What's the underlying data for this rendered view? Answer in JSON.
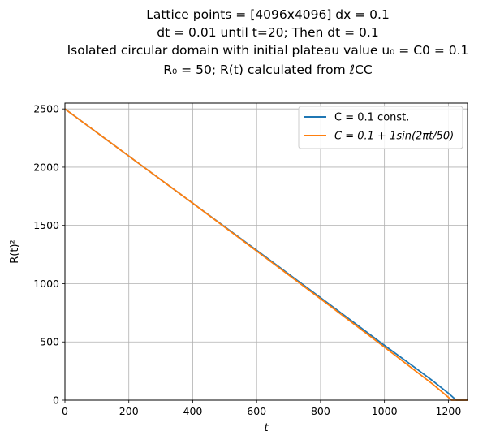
{
  "chart_data": {
    "type": "line",
    "title_lines": [
      "Lattice points = [4096x4096] dx = 0.1",
      "dt = 0.01 until t=20; Then dt = 0.1",
      "Isolated circular domain with initial plateau value u₀ = C0 = 0.1",
      "R₀ = 50; R(t) calculated from ℓCC"
    ],
    "xlabel": "t",
    "ylabel": "R(t)²",
    "xlim": [
      0,
      1260
    ],
    "ylim": [
      0,
      2550
    ],
    "xticks": [
      0,
      200,
      400,
      600,
      800,
      1000,
      1200
    ],
    "yticks": [
      0,
      500,
      1000,
      1500,
      2000,
      2500
    ],
    "grid": true,
    "legend_position": "upper-right",
    "series": [
      {
        "name": "C = 0.1 const.",
        "color": "#1f77b4",
        "x": [
          0,
          200,
          400,
          600,
          800,
          1000,
          1100,
          1150,
          1200,
          1225,
          1260
        ],
        "y": [
          2500,
          2095,
          1690,
          1287,
          880,
          470,
          270,
          168,
          60,
          0,
          0
        ]
      },
      {
        "name": "C = 0.1 + 1sin(2πt/50)",
        "color": "#ff7f0e",
        "x": [
          0,
          200,
          400,
          600,
          800,
          1000,
          1100,
          1150,
          1200,
          1210,
          1260
        ],
        "y": [
          2500,
          2095,
          1690,
          1280,
          870,
          455,
          245,
          140,
          25,
          0,
          0
        ]
      }
    ]
  }
}
